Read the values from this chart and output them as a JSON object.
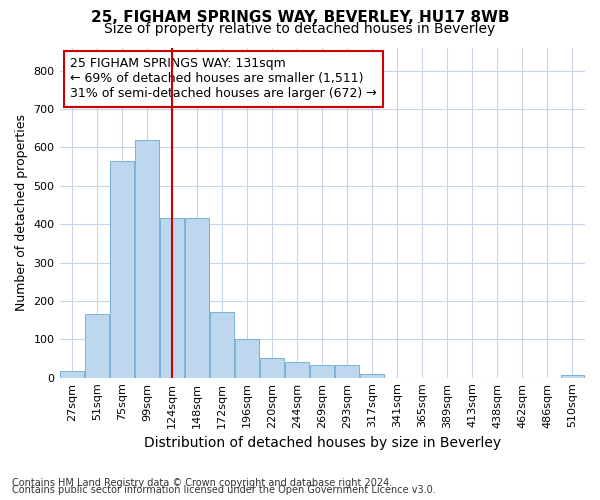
{
  "title": "25, FIGHAM SPRINGS WAY, BEVERLEY, HU17 8WB",
  "subtitle": "Size of property relative to detached houses in Beverley",
  "xlabel": "Distribution of detached houses by size in Beverley",
  "ylabel": "Number of detached properties",
  "bar_labels": [
    "27sqm",
    "51sqm",
    "75sqm",
    "99sqm",
    "124sqm",
    "148sqm",
    "172sqm",
    "196sqm",
    "220sqm",
    "244sqm",
    "269sqm",
    "293sqm",
    "317sqm",
    "341sqm",
    "365sqm",
    "389sqm",
    "413sqm",
    "438sqm",
    "462sqm",
    "486sqm",
    "510sqm"
  ],
  "bar_values": [
    18,
    165,
    565,
    620,
    415,
    415,
    170,
    100,
    50,
    40,
    33,
    33,
    10,
    0,
    0,
    0,
    0,
    0,
    0,
    0,
    8
  ],
  "bar_color": "#bdd7ee",
  "bar_edge_color": "#7ab0d4",
  "vline_x": 4.0,
  "vline_color": "#cc0000",
  "annotation_text": "25 FIGHAM SPRINGS WAY: 131sqm\n← 69% of detached houses are smaller (1,511)\n31% of semi-detached houses are larger (672) →",
  "annotation_box_color": "white",
  "annotation_box_edge_color": "#cc0000",
  "ylim": [
    0,
    860
  ],
  "yticks": [
    0,
    100,
    200,
    300,
    400,
    500,
    600,
    700,
    800
  ],
  "grid_color": "#c8d4e8",
  "footer_line1": "Contains HM Land Registry data © Crown copyright and database right 2024.",
  "footer_line2": "Contains public sector information licensed under the Open Government Licence v3.0.",
  "title_fontsize": 11,
  "subtitle_fontsize": 10,
  "xlabel_fontsize": 10,
  "ylabel_fontsize": 9,
  "tick_fontsize": 8,
  "annotation_fontsize": 9,
  "footer_fontsize": 7,
  "background_color": "#ffffff"
}
